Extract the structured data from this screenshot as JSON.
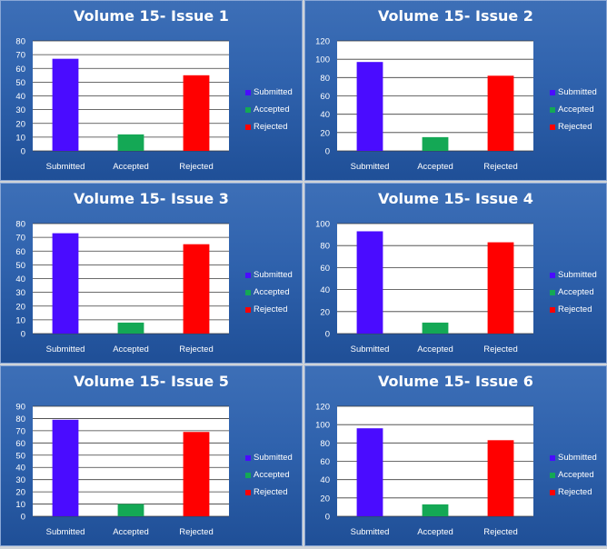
{
  "colors": {
    "submitted": "#4a0cff",
    "accepted": "#14a855",
    "rejected": "#ff0000",
    "gridline": "#3a3a3a",
    "panel_bg": "#2f62ad"
  },
  "legend": [
    "Submitted",
    "Accepted",
    "Rejected"
  ],
  "chart_data": [
    {
      "type": "bar",
      "title": "Volume 15- Issue 1",
      "categories": [
        "Submitted",
        "Accepted",
        "Rejected"
      ],
      "values": [
        67,
        12,
        55
      ],
      "ylim": [
        0,
        80
      ],
      "yticks": [
        0,
        10,
        20,
        30,
        40,
        50,
        60,
        70,
        80
      ],
      "grid": true,
      "legend_position": "right"
    },
    {
      "type": "bar",
      "title": "Volume 15- Issue 2",
      "categories": [
        "Submitted",
        "Accepted",
        "Rejected"
      ],
      "values": [
        97,
        15,
        82
      ],
      "ylim": [
        0,
        120
      ],
      "yticks": [
        0,
        20,
        40,
        60,
        80,
        100,
        120
      ],
      "grid": true,
      "legend_position": "right"
    },
    {
      "type": "bar",
      "title": "Volume 15- Issue 3",
      "categories": [
        "Submitted",
        "Accepted",
        "Rejected"
      ],
      "values": [
        73,
        8,
        65
      ],
      "ylim": [
        0,
        80
      ],
      "yticks": [
        0,
        10,
        20,
        30,
        40,
        50,
        60,
        70,
        80
      ],
      "grid": true,
      "legend_position": "right"
    },
    {
      "type": "bar",
      "title": "Volume 15- Issue 4",
      "categories": [
        "Submitted",
        "Accepted",
        "Rejected"
      ],
      "values": [
        93,
        10,
        83
      ],
      "ylim": [
        0,
        100
      ],
      "yticks": [
        0,
        20,
        40,
        60,
        80,
        100
      ],
      "grid": true,
      "legend_position": "right"
    },
    {
      "type": "bar",
      "title": "Volume 15- Issue 5",
      "categories": [
        "Submitted",
        "Accepted",
        "Rejected"
      ],
      "values": [
        79,
        10,
        69
      ],
      "ylim": [
        0,
        90
      ],
      "yticks": [
        0,
        10,
        20,
        30,
        40,
        50,
        60,
        70,
        80,
        90
      ],
      "grid": true,
      "legend_position": "right"
    },
    {
      "type": "bar",
      "title": "Volume 15- Issue 6",
      "categories": [
        "Submitted",
        "Accepted",
        "Rejected"
      ],
      "values": [
        96,
        13,
        83
      ],
      "ylim": [
        0,
        120
      ],
      "yticks": [
        0,
        20,
        40,
        60,
        80,
        100,
        120
      ],
      "grid": true,
      "legend_position": "right"
    }
  ]
}
